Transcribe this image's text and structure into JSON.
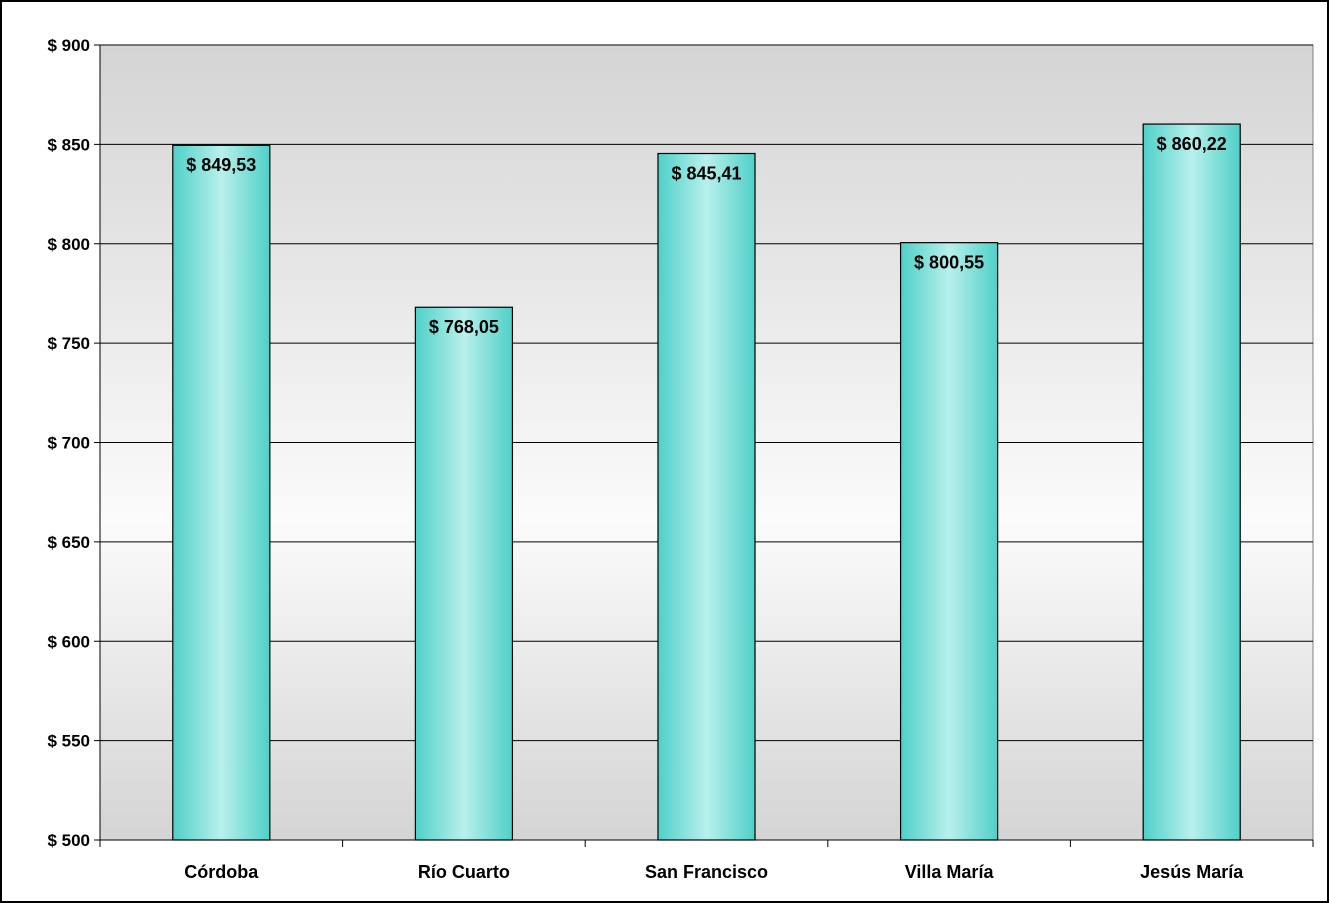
{
  "chart_data": {
    "type": "bar",
    "title": "",
    "xlabel": "",
    "ylabel": "",
    "categories": [
      "Córdoba",
      "Río Cuarto",
      "San Francisco",
      "Villa María",
      "Jesús María"
    ],
    "values": [
      849.53,
      768.05,
      845.41,
      800.55,
      860.22
    ],
    "data_labels": [
      "$ 849,53",
      "$ 768,05",
      "$ 845,41",
      "$ 800,55",
      "$ 860,22"
    ],
    "ylim": [
      500,
      900
    ],
    "yticks": [
      500,
      550,
      600,
      650,
      700,
      750,
      800,
      850,
      900
    ],
    "ytick_labels": [
      "$ 500",
      "$ 550",
      "$ 600",
      "$ 650",
      "$ 700",
      "$ 750",
      "$ 800",
      "$ 850",
      "$ 900"
    ],
    "grid": true,
    "legend": "none",
    "colors": {
      "bar_edge": "#4fd0c8",
      "bar_center": "#b8f0ec",
      "bar_outline": "#000000",
      "plot_top": "#d4d4d4",
      "plot_middle": "#fbfbfb",
      "plot_bottom": "#d4d4d4",
      "gridline": "#000000"
    }
  }
}
